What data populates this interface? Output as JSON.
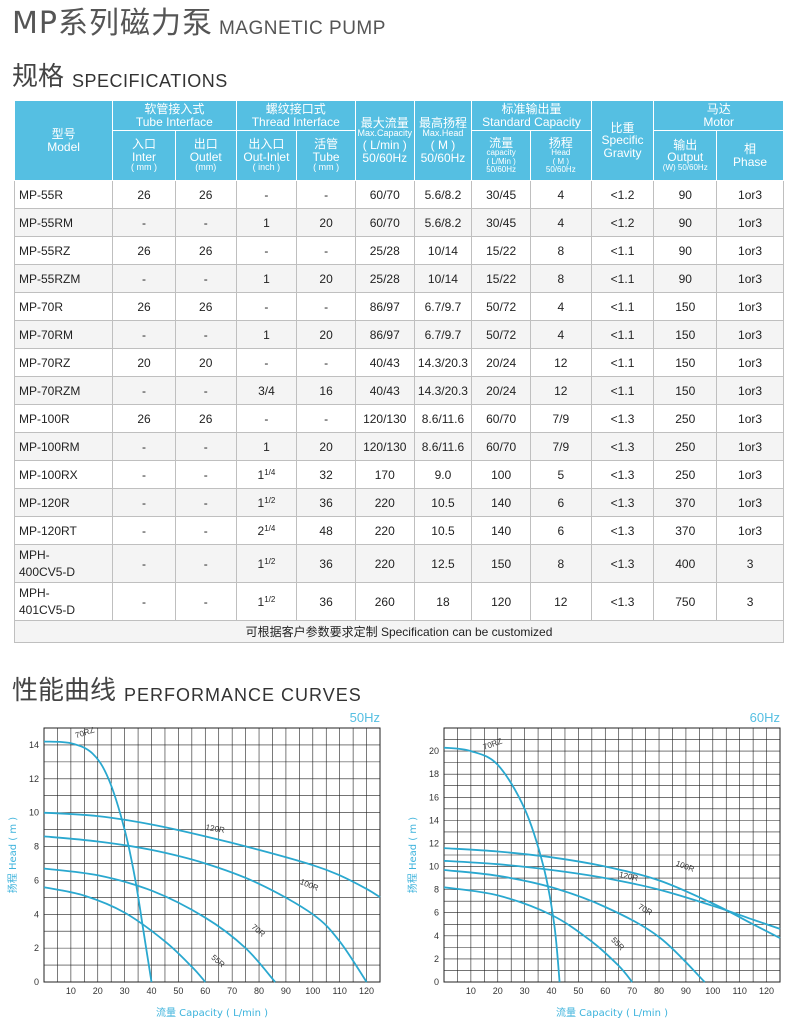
{
  "header": {
    "title_cn": "MP系列磁力泵",
    "title_en": "MAGNETIC PUMP",
    "spec_cn": "规格",
    "spec_en": "SPECIFICATIONS",
    "perf_cn": "性能曲线",
    "perf_en": "PERFORMANCE CURVES"
  },
  "table": {
    "head": {
      "model_cn": "型号",
      "model_en": "Model",
      "tube_cn": "软管接入式",
      "tube_en": "Tube Interface",
      "thread_cn": "螺纹接口式",
      "thread_en": "Thread Interface",
      "maxflow_cn": "最大流量",
      "maxflow_en": "Max.Capacity",
      "maxflow_unit": "( L/min )",
      "maxflow_hz": "50/60Hz",
      "maxhead_cn": "最高扬程",
      "maxhead_en": "Max.Head",
      "maxhead_unit": "( M )",
      "maxhead_hz": "50/60Hz",
      "std_cn": "标准输出量",
      "std_en": "Standard Capacity",
      "sg_cn": "比重",
      "sg_en1": "Specific",
      "sg_en2": "Gravity",
      "motor_cn": "马达",
      "motor_en": "Motor",
      "inlet_cn": "入口",
      "inlet_en": "Inter",
      "inlet_unit": "( mm )",
      "outlet_cn": "出口",
      "outlet_en": "Outlet",
      "outlet_unit": "(mm)",
      "tin_cn": "出入口",
      "tin_en": "Out-Inlet",
      "tin_unit": "( inch )",
      "ttube_cn": "活管",
      "ttube_en": "Tube",
      "ttube_unit": "( mm )",
      "flow_cn": "流量",
      "flow_en": "capacity",
      "flow_unit": "( L/Min )",
      "flow_hz": "50/60Hz",
      "head_cn": "扬程",
      "head_en": "Head",
      "head_unit": "( M )",
      "head_hz": "50/60Hz",
      "out_cn": "输出",
      "out_en": "Output",
      "out_unit": "(W) 50/60Hz",
      "phase_cn": "相",
      "phase_en": "Phase"
    },
    "rows": [
      {
        "model": "MP-55R",
        "inlet": "26",
        "outlet": "26",
        "tin": "-",
        "tin_sup": "",
        "ttube": "-",
        "maxflow": "60/70",
        "maxhead": "5.6/8.2",
        "flow": "30/45",
        "head": "4",
        "sg": "<1.2",
        "output": "90",
        "phase": "1or3"
      },
      {
        "model": "MP-55RM",
        "inlet": "-",
        "outlet": "-",
        "tin": "1",
        "tin_sup": "",
        "ttube": "20",
        "maxflow": "60/70",
        "maxhead": "5.6/8.2",
        "flow": "30/45",
        "head": "4",
        "sg": "<1.2",
        "output": "90",
        "phase": "1or3"
      },
      {
        "model": "MP-55RZ",
        "inlet": "26",
        "outlet": "26",
        "tin": "-",
        "tin_sup": "",
        "ttube": "-",
        "maxflow": "25/28",
        "maxhead": "10/14",
        "flow": "15/22",
        "head": "8",
        "sg": "<1.1",
        "output": "90",
        "phase": "1or3"
      },
      {
        "model": "MP-55RZM",
        "inlet": "-",
        "outlet": "-",
        "tin": "1",
        "tin_sup": "",
        "ttube": "20",
        "maxflow": "25/28",
        "maxhead": "10/14",
        "flow": "15/22",
        "head": "8",
        "sg": "<1.1",
        "output": "90",
        "phase": "1or3"
      },
      {
        "model": "MP-70R",
        "inlet": "26",
        "outlet": "26",
        "tin": "-",
        "tin_sup": "",
        "ttube": "-",
        "maxflow": "86/97",
        "maxhead": "6.7/9.7",
        "flow": "50/72",
        "head": "4",
        "sg": "<1.1",
        "output": "150",
        "phase": "1or3"
      },
      {
        "model": "MP-70RM",
        "inlet": "-",
        "outlet": "-",
        "tin": "1",
        "tin_sup": "",
        "ttube": "20",
        "maxflow": "86/97",
        "maxhead": "6.7/9.7",
        "flow": "50/72",
        "head": "4",
        "sg": "<1.1",
        "output": "150",
        "phase": "1or3"
      },
      {
        "model": "MP-70RZ",
        "inlet": "20",
        "outlet": "20",
        "tin": "-",
        "tin_sup": "",
        "ttube": "-",
        "maxflow": "40/43",
        "maxhead": "14.3/20.3",
        "flow": "20/24",
        "head": "12",
        "sg": "<1.1",
        "output": "150",
        "phase": "1or3"
      },
      {
        "model": "MP-70RZM",
        "inlet": "-",
        "outlet": "-",
        "tin": "3/4",
        "tin_sup": "",
        "ttube": "16",
        "maxflow": "40/43",
        "maxhead": "14.3/20.3",
        "flow": "20/24",
        "head": "12",
        "sg": "<1.1",
        "output": "150",
        "phase": "1or3"
      },
      {
        "model": "MP-100R",
        "inlet": "26",
        "outlet": "26",
        "tin": "-",
        "tin_sup": "",
        "ttube": "-",
        "maxflow": "120/130",
        "maxhead": "8.6/11.6",
        "flow": "60/70",
        "head": "7/9",
        "sg": "<1.3",
        "output": "250",
        "phase": "1or3"
      },
      {
        "model": "MP-100RM",
        "inlet": "-",
        "outlet": "-",
        "tin": "1",
        "tin_sup": "",
        "ttube": "20",
        "maxflow": "120/130",
        "maxhead": "8.6/11.6",
        "flow": "60/70",
        "head": "7/9",
        "sg": "<1.3",
        "output": "250",
        "phase": "1or3"
      },
      {
        "model": "MP-100RX",
        "inlet": "-",
        "outlet": "-",
        "tin": "1",
        "tin_sup": "1/4",
        "ttube": "32",
        "maxflow": "170",
        "maxhead": "9.0",
        "flow": "100",
        "head": "5",
        "sg": "<1.3",
        "output": "250",
        "phase": "1or3"
      },
      {
        "model": "MP-120R",
        "inlet": "-",
        "outlet": "-",
        "tin": "1",
        "tin_sup": "1/2",
        "ttube": "36",
        "maxflow": "220",
        "maxhead": "10.5",
        "flow": "140",
        "head": "6",
        "sg": "<1.3",
        "output": "370",
        "phase": "1or3"
      },
      {
        "model": "MP-120RT",
        "inlet": "-",
        "outlet": "-",
        "tin": "2",
        "tin_sup": "1/4",
        "ttube": "48",
        "maxflow": "220",
        "maxhead": "10.5",
        "flow": "140",
        "head": "6",
        "sg": "<1.3",
        "output": "370",
        "phase": "1or3"
      },
      {
        "model": "MPH-400CV5-D",
        "model_l1": "MPH-",
        "model_l2": "400CV5-D",
        "inlet": "-",
        "outlet": "-",
        "tin": "1",
        "tin_sup": "1/2",
        "ttube": "36",
        "maxflow": "220",
        "maxhead": "12.5",
        "flow": "150",
        "head": "8",
        "sg": "<1.3",
        "output": "400",
        "phase": "3"
      },
      {
        "model": "MPH-401CV5-D",
        "model_l1": "MPH-",
        "model_l2": "401CV5-D",
        "inlet": "-",
        "outlet": "-",
        "tin": "1",
        "tin_sup": "1/2",
        "ttube": "36",
        "maxflow": "260",
        "maxhead": "18",
        "flow": "120",
        "head": "12",
        "sg": "<1.3",
        "output": "750",
        "phase": "3"
      }
    ],
    "footer": "可根据客户参数要求定制 Specification can be customized"
  },
  "colors": {
    "accent": "#55bfe2",
    "curve": "#2aa8cf",
    "grid": "#222222"
  },
  "chart_data": [
    {
      "type": "line",
      "title": "50Hz",
      "xlabel": "流量 Capacity ( L/min )",
      "ylabel": "扬程 Head ( m )",
      "xlim": [
        0,
        125
      ],
      "ylim": [
        0,
        15
      ],
      "xticks": [
        10,
        20,
        30,
        40,
        50,
        60,
        70,
        80,
        90,
        100,
        110,
        120
      ],
      "yticks": [
        0,
        2,
        4,
        6,
        8,
        10,
        12,
        14
      ],
      "series": [
        {
          "name": "70RZ",
          "x": [
            0,
            10,
            18,
            24,
            30,
            34,
            37,
            40
          ],
          "y": [
            14.2,
            14.1,
            13.5,
            12.0,
            9.0,
            6.0,
            3.0,
            0
          ]
        },
        {
          "name": "120R",
          "x": [
            0,
            20,
            40,
            60,
            80,
            100,
            110,
            120,
            125
          ],
          "y": [
            10,
            9.8,
            9.3,
            8.6,
            7.8,
            6.9,
            6.3,
            5.5,
            5.0
          ]
        },
        {
          "name": "100R",
          "x": [
            0,
            20,
            40,
            60,
            80,
            100,
            110,
            120
          ],
          "y": [
            8.6,
            8.3,
            7.8,
            7.0,
            5.8,
            4.0,
            2.4,
            0
          ]
        },
        {
          "name": "70R",
          "x": [
            0,
            20,
            40,
            60,
            75,
            86
          ],
          "y": [
            6.7,
            6.3,
            5.4,
            3.8,
            2.0,
            0
          ]
        },
        {
          "name": "55R",
          "x": [
            0,
            15,
            30,
            45,
            55,
            60
          ],
          "y": [
            5.6,
            5.1,
            4.1,
            2.4,
            0.9,
            0
          ]
        }
      ]
    },
    {
      "type": "line",
      "title": "60Hz",
      "xlabel": "流量 Capacity ( L/min )",
      "ylabel": "扬程 Head ( m )",
      "xlim": [
        0,
        125
      ],
      "ylim": [
        0,
        22
      ],
      "xticks": [
        10,
        20,
        30,
        40,
        50,
        60,
        70,
        80,
        90,
        100,
        110,
        120
      ],
      "yticks": [
        0,
        2,
        4,
        6,
        8,
        10,
        12,
        14,
        16,
        18,
        20
      ],
      "series": [
        {
          "name": "70RZ",
          "x": [
            0,
            10,
            20,
            30,
            37,
            41,
            43
          ],
          "y": [
            20.3,
            20.0,
            18.8,
            15.0,
            10.0,
            5.0,
            0
          ]
        },
        {
          "name": "100R",
          "x": [
            0,
            20,
            40,
            60,
            80,
            100,
            115,
            125
          ],
          "y": [
            11.6,
            11.3,
            10.8,
            10.0,
            8.8,
            6.8,
            5.0,
            3.8
          ]
        },
        {
          "name": "120R",
          "x": [
            0,
            20,
            40,
            60,
            80,
            100,
            115,
            125
          ],
          "y": [
            10.5,
            10.2,
            9.7,
            9.0,
            8.0,
            6.6,
            5.4,
            4.6
          ]
        },
        {
          "name": "70R",
          "x": [
            0,
            20,
            40,
            60,
            80,
            97
          ],
          "y": [
            9.7,
            9.2,
            8.2,
            6.5,
            3.9,
            0
          ]
        },
        {
          "name": "55R",
          "x": [
            0,
            20,
            40,
            55,
            65,
            70
          ],
          "y": [
            8.2,
            7.5,
            5.8,
            3.5,
            1.4,
            0
          ]
        }
      ]
    }
  ]
}
